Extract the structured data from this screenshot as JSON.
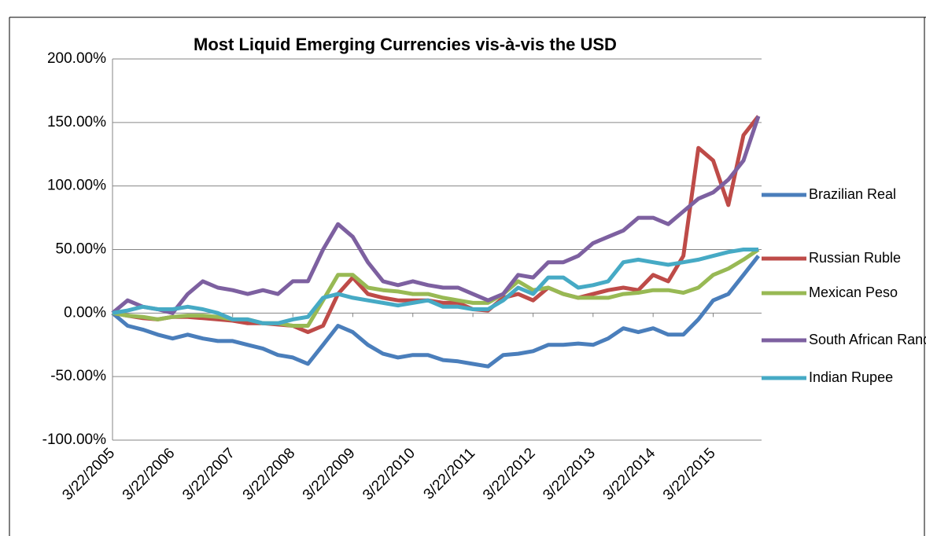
{
  "chart_data": {
    "type": "line",
    "title": "Most Liquid Emerging Currencies vis-à-vis the USD",
    "x": [
      "3/22/2005",
      "6/22/2005",
      "9/22/2005",
      "12/22/2005",
      "3/22/2006",
      "6/22/2006",
      "9/22/2006",
      "12/22/2006",
      "3/22/2007",
      "6/22/2007",
      "9/22/2007",
      "12/22/2007",
      "3/22/2008",
      "6/22/2008",
      "9/22/2008",
      "12/22/2008",
      "3/22/2009",
      "6/22/2009",
      "9/22/2009",
      "12/22/2009",
      "3/22/2010",
      "6/22/2010",
      "9/22/2010",
      "12/22/2010",
      "3/22/2011",
      "6/22/2011",
      "9/22/2011",
      "12/22/2011",
      "3/22/2012",
      "6/22/2012",
      "9/22/2012",
      "12/22/2012",
      "3/22/2013",
      "6/22/2013",
      "9/22/2013",
      "12/22/2013",
      "3/22/2014",
      "6/22/2014",
      "9/22/2014",
      "12/22/2014",
      "3/22/2015",
      "6/22/2015",
      "9/22/2015",
      "12/22/2015"
    ],
    "series": [
      {
        "name": "Brazilian Real",
        "color": "#4a7ebb",
        "values": [
          0,
          -10,
          -13,
          -17,
          -20,
          -17,
          -20,
          -22,
          -22,
          -25,
          -28,
          -33,
          -35,
          -40,
          -25,
          -10,
          -15,
          -25,
          -32,
          -35,
          -33,
          -33,
          -37,
          -38,
          -40,
          -42,
          -33,
          -32,
          -30,
          -25,
          -25,
          -24,
          -25,
          -20,
          -12,
          -15,
          -12,
          -17,
          -17,
          -5,
          10,
          15,
          30,
          45
        ]
      },
      {
        "name": "Russian Ruble",
        "color": "#be4b48",
        "values": [
          0,
          -2,
          -4,
          -5,
          -3,
          -3,
          -4,
          -5,
          -6,
          -8,
          -8,
          -9,
          -10,
          -15,
          -10,
          15,
          28,
          15,
          12,
          10,
          10,
          10,
          8,
          8,
          3,
          2,
          12,
          15,
          10,
          20,
          15,
          12,
          15,
          18,
          20,
          18,
          30,
          25,
          45,
          130,
          120,
          85,
          140,
          155
        ]
      },
      {
        "name": "Mexican Peso",
        "color": "#98b954",
        "values": [
          0,
          -2,
          -3,
          -5,
          -3,
          -2,
          -2,
          -3,
          -5,
          -5,
          -8,
          -8,
          -10,
          -10,
          10,
          30,
          30,
          20,
          18,
          17,
          15,
          15,
          12,
          10,
          8,
          8,
          15,
          25,
          18,
          20,
          15,
          12,
          12,
          12,
          15,
          16,
          18,
          18,
          16,
          20,
          30,
          35,
          42,
          50
        ]
      },
      {
        "name": "South African Rand",
        "color": "#7d60a0",
        "values": [
          0,
          10,
          5,
          3,
          0,
          15,
          25,
          20,
          18,
          15,
          18,
          15,
          25,
          25,
          50,
          70,
          60,
          40,
          25,
          22,
          25,
          22,
          20,
          20,
          15,
          10,
          15,
          30,
          28,
          40,
          40,
          45,
          55,
          60,
          65,
          75,
          75,
          70,
          80,
          90,
          95,
          105,
          120,
          155
        ]
      },
      {
        "name": "Indian Rupee",
        "color": "#46aac5",
        "values": [
          0,
          2,
          5,
          3,
          3,
          5,
          3,
          0,
          -5,
          -5,
          -8,
          -8,
          -5,
          -3,
          12,
          15,
          12,
          10,
          8,
          6,
          8,
          10,
          5,
          5,
          3,
          3,
          10,
          20,
          15,
          28,
          28,
          20,
          22,
          25,
          40,
          42,
          40,
          38,
          40,
          42,
          45,
          48,
          50,
          50
        ]
      }
    ],
    "xlim": [
      "3/22/2005",
      "1/10/2016"
    ],
    "xticks": [
      "3/22/2005",
      "3/22/2006",
      "3/22/2007",
      "3/22/2008",
      "3/22/2009",
      "3/22/2010",
      "3/22/2011",
      "3/22/2012",
      "3/22/2013",
      "3/22/2014",
      "3/22/2015"
    ],
    "ylim": [
      -100,
      200
    ],
    "yticks": [
      {
        "value": -100,
        "label": "-100.00%"
      },
      {
        "value": -50,
        "label": "-50.00%"
      },
      {
        "value": 0,
        "label": "0.00%"
      },
      {
        "value": 50,
        "label": "50.00%"
      },
      {
        "value": 100,
        "label": "100.00%"
      },
      {
        "value": 150,
        "label": "150.00%"
      },
      {
        "value": 200,
        "label": "200.00%"
      }
    ],
    "grid": true,
    "legend": "right"
  }
}
